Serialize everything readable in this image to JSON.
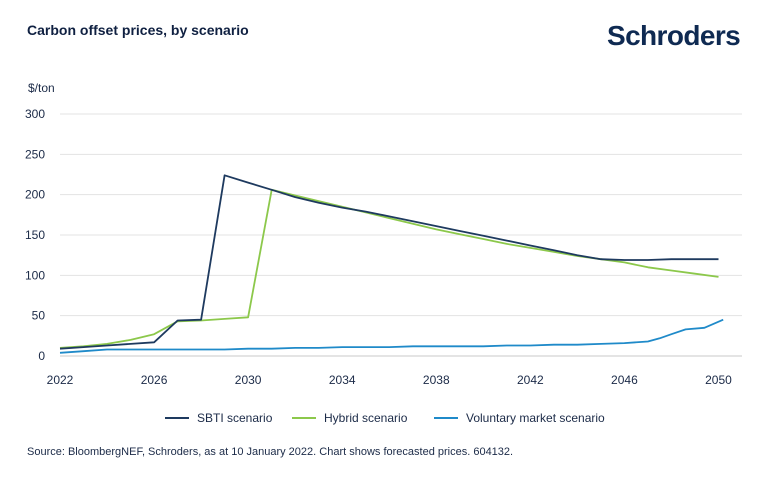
{
  "header": {
    "title": "Carbon offset prices, by scenario",
    "logo_text": "Schroders"
  },
  "colors": {
    "sbti": "#1e3a5f",
    "hybrid": "#8cc84b",
    "voluntary": "#1f8ac9",
    "grid": "#e3e3e3",
    "logo": "#0f2a52"
  },
  "chart_data": {
    "type": "line",
    "ylabel": "$/ton",
    "xlabel": "",
    "xlim": [
      2022,
      2051
    ],
    "ylim": [
      0,
      300
    ],
    "x_ticks": [
      "2022",
      "2026",
      "2030",
      "2034",
      "2038",
      "2042",
      "2046",
      "2050"
    ],
    "y_ticks": [
      "0",
      "50",
      "100",
      "150",
      "200",
      "250",
      "300"
    ],
    "grid": true,
    "legend_position": "bottom",
    "series": [
      {
        "name": "SBTI scenario",
        "color_key": "sbti",
        "points": [
          [
            2022,
            9
          ],
          [
            2023,
            11
          ],
          [
            2024,
            13
          ],
          [
            2025,
            15
          ],
          [
            2026,
            17
          ],
          [
            2027,
            44
          ],
          [
            2028,
            45
          ],
          [
            2029,
            224
          ],
          [
            2030,
            215
          ],
          [
            2031,
            206
          ],
          [
            2032,
            197
          ],
          [
            2033,
            190
          ],
          [
            2034,
            184
          ],
          [
            2035,
            179
          ],
          [
            2036,
            173
          ],
          [
            2037,
            167
          ],
          [
            2038,
            161
          ],
          [
            2039,
            155
          ],
          [
            2040,
            149
          ],
          [
            2041,
            143
          ],
          [
            2042,
            137
          ],
          [
            2043,
            131
          ],
          [
            2044,
            125
          ],
          [
            2045,
            120
          ],
          [
            2046,
            119
          ],
          [
            2047,
            119
          ],
          [
            2048,
            120
          ],
          [
            2049,
            120
          ],
          [
            2050,
            120
          ]
        ]
      },
      {
        "name": "Hybrid scenario",
        "color_key": "hybrid",
        "points": [
          [
            2022,
            10
          ],
          [
            2023,
            12
          ],
          [
            2024,
            15
          ],
          [
            2025,
            20
          ],
          [
            2026,
            27
          ],
          [
            2027,
            43
          ],
          [
            2028,
            44
          ],
          [
            2029,
            46
          ],
          [
            2030,
            48
          ],
          [
            2031,
            206
          ],
          [
            2032,
            199
          ],
          [
            2033,
            192
          ],
          [
            2034,
            185
          ],
          [
            2035,
            178
          ],
          [
            2036,
            171
          ],
          [
            2037,
            164
          ],
          [
            2038,
            157
          ],
          [
            2039,
            151
          ],
          [
            2040,
            145
          ],
          [
            2041,
            139
          ],
          [
            2042,
            134
          ],
          [
            2043,
            129
          ],
          [
            2044,
            124
          ],
          [
            2045,
            120
          ],
          [
            2046,
            116
          ],
          [
            2047,
            110
          ],
          [
            2048,
            106
          ],
          [
            2049,
            102
          ],
          [
            2050,
            98
          ]
        ]
      },
      {
        "name": "Voluntary market scenario",
        "color_key": "voluntary",
        "points": [
          [
            2022,
            4
          ],
          [
            2023,
            6
          ],
          [
            2024,
            8
          ],
          [
            2025,
            8
          ],
          [
            2026,
            8
          ],
          [
            2027,
            8
          ],
          [
            2028,
            8
          ],
          [
            2029,
            8
          ],
          [
            2030,
            9
          ],
          [
            2031,
            9
          ],
          [
            2032,
            10
          ],
          [
            2033,
            10
          ],
          [
            2034,
            11
          ],
          [
            2035,
            11
          ],
          [
            2036,
            11
          ],
          [
            2037,
            12
          ],
          [
            2038,
            12
          ],
          [
            2039,
            12
          ],
          [
            2040,
            12
          ],
          [
            2041,
            13
          ],
          [
            2042,
            13
          ],
          [
            2043,
            14
          ],
          [
            2044,
            14
          ],
          [
            2045,
            15
          ],
          [
            2046,
            16
          ],
          [
            2047,
            18
          ],
          [
            2047.5,
            22
          ],
          [
            2048,
            27
          ],
          [
            2048.6,
            33
          ],
          [
            2049.4,
            35
          ],
          [
            2050.2,
            45
          ]
        ]
      }
    ]
  },
  "footer": {
    "source": "Source: BloombergNEF, Schroders, as at 10 January 2022. Chart shows forecasted prices. 604132."
  }
}
